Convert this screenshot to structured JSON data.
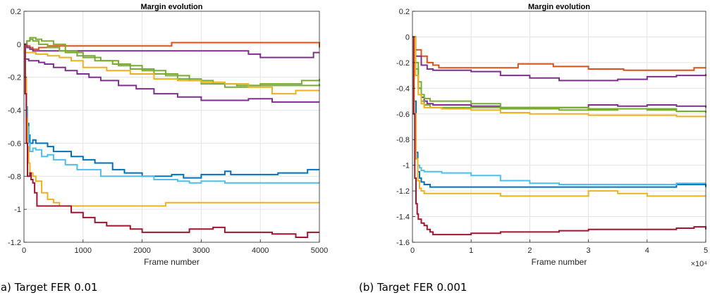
{
  "captions": [
    "(a) Target FER 0.01",
    "(b) Target FER 0.001"
  ],
  "chart_data": [
    {
      "type": "line",
      "title": "Margin evolution",
      "xlabel": "Frame number",
      "ylabel": "",
      "xlim": [
        0,
        5000
      ],
      "ylim": [
        -1.2,
        0.2
      ],
      "xticks": [
        0,
        1000,
        2000,
        3000,
        4000,
        5000
      ],
      "xtick_labels": [
        "0",
        "1000",
        "2000",
        "3000",
        "4000",
        "5000"
      ],
      "yticks": [
        0.2,
        0,
        -0.2,
        -0.4,
        -0.6,
        -0.8,
        -1,
        -1.2
      ],
      "ytick_labels": [
        "0.2",
        "0",
        "-0.2",
        "-0.4",
        "-0.6",
        "-0.8",
        "-1",
        "-1.2"
      ],
      "x_exponent_label": "",
      "grid": true,
      "series": [
        {
          "color": "#D95319",
          "x": [
            0,
            50,
            100,
            150,
            250,
            400,
            2400,
            2500,
            3600,
            3700,
            4900,
            5000
          ],
          "y": [
            0,
            -0.01,
            -0.02,
            -0.03,
            -0.02,
            -0.01,
            -0.01,
            0.01,
            0.01,
            0.01,
            0.01,
            -0.02
          ]
        },
        {
          "color": "#7E2F8E",
          "x": [
            0,
            50,
            100,
            150,
            200,
            300,
            500,
            3600,
            3800,
            4000,
            4500,
            4900,
            5000
          ],
          "y": [
            0,
            -0.02,
            -0.03,
            -0.04,
            -0.04,
            -0.04,
            -0.04,
            -0.04,
            -0.06,
            -0.08,
            -0.08,
            -0.05,
            -0.05
          ]
        },
        {
          "color": "#7E2F8E",
          "x": [
            0,
            40,
            80,
            120,
            200,
            250,
            350,
            500,
            700,
            900,
            1100,
            1300,
            1600,
            1900,
            2200,
            2600,
            3000,
            3400,
            3800,
            4200,
            4600,
            5000
          ],
          "y": [
            -0.09,
            -0.09,
            -0.1,
            -0.1,
            -0.1,
            -0.11,
            -0.12,
            -0.14,
            -0.16,
            -0.18,
            -0.2,
            -0.22,
            -0.25,
            -0.27,
            -0.3,
            -0.32,
            -0.34,
            -0.34,
            -0.33,
            -0.35,
            -0.35,
            -0.35
          ]
        },
        {
          "color": "#77AC30",
          "x": [
            0,
            50,
            100,
            150,
            200,
            300,
            500,
            700,
            1000,
            1300,
            1600,
            2000,
            2400,
            2800,
            3200,
            3600,
            4000,
            4400,
            4700,
            5000
          ],
          "y": [
            0,
            0.02,
            0.04,
            0.04,
            0.03,
            0.02,
            0.0,
            -0.05,
            -0.08,
            -0.1,
            -0.13,
            -0.16,
            -0.19,
            -0.22,
            -0.24,
            -0.25,
            -0.24,
            -0.24,
            -0.22,
            -0.21
          ]
        },
        {
          "color": "#77AC30",
          "x": [
            0,
            50,
            100,
            150,
            250,
            400,
            600,
            900,
            1200,
            1500,
            1800,
            2200,
            2600,
            3000,
            3400,
            3800,
            4200,
            4600,
            5000
          ],
          "y": [
            0,
            0.02,
            0.03,
            0.02,
            0.0,
            -0.02,
            -0.04,
            -0.07,
            -0.1,
            -0.12,
            -0.15,
            -0.18,
            -0.21,
            -0.24,
            -0.26,
            -0.25,
            -0.25,
            -0.25,
            -0.24
          ]
        },
        {
          "color": "#EDB120",
          "x": [
            0,
            200,
            400,
            600,
            800,
            1000,
            1400,
            1800,
            2200,
            2600,
            3000,
            3400,
            3800,
            4200,
            4600,
            5000
          ],
          "y": [
            -0.05,
            -0.06,
            -0.07,
            -0.08,
            -0.1,
            -0.14,
            -0.16,
            -0.18,
            -0.21,
            -0.22,
            -0.23,
            -0.24,
            -0.26,
            -0.3,
            -0.28,
            -0.28
          ]
        },
        {
          "color": "#0072BD",
          "x": [
            0,
            20,
            40,
            60,
            80,
            100,
            150,
            200,
            300,
            400,
            500,
            600,
            800,
            1000,
            1200,
            1400,
            1500,
            1700,
            2000,
            2500,
            2700,
            3000,
            3300,
            3400,
            3500,
            3800,
            4000,
            4300,
            4600,
            4800,
            5000
          ],
          "y": [
            0,
            -0.2,
            -0.38,
            -0.48,
            -0.55,
            -0.6,
            -0.58,
            -0.6,
            -0.6,
            -0.62,
            -0.65,
            -0.65,
            -0.68,
            -0.7,
            -0.72,
            -0.72,
            -0.76,
            -0.78,
            -0.8,
            -0.79,
            -0.81,
            -0.79,
            -0.79,
            -0.77,
            -0.79,
            -0.79,
            -0.79,
            -0.78,
            -0.78,
            -0.76,
            -0.76
          ]
        },
        {
          "color": "#4DBEEE",
          "x": [
            0,
            20,
            40,
            60,
            80,
            100,
            150,
            200,
            300,
            400,
            500,
            700,
            900,
            1300,
            1800,
            2200,
            2600,
            2800,
            3000,
            3400,
            3800,
            4200,
            4600,
            5000
          ],
          "y": [
            0,
            -0.2,
            -0.38,
            -0.5,
            -0.6,
            -0.65,
            -0.63,
            -0.64,
            -0.68,
            -0.67,
            -0.7,
            -0.73,
            -0.76,
            -0.8,
            -0.8,
            -0.82,
            -0.83,
            -0.84,
            -0.83,
            -0.84,
            -0.84,
            -0.84,
            -0.84,
            -0.84
          ]
        },
        {
          "color": "#EDB120",
          "x": [
            0,
            20,
            40,
            60,
            80,
            100,
            150,
            200,
            300,
            400,
            500,
            600,
            800,
            1000,
            1200,
            1500,
            1800,
            2100,
            2400,
            2700,
            3000,
            3300,
            3600,
            3900,
            4200,
            4500,
            4800,
            5000
          ],
          "y": [
            0,
            -0.2,
            -0.45,
            -0.62,
            -0.72,
            -0.78,
            -0.8,
            -0.83,
            -0.9,
            -0.94,
            -0.96,
            -0.98,
            -0.98,
            -0.98,
            -0.98,
            -0.98,
            -0.98,
            -0.98,
            -0.96,
            -0.96,
            -0.96,
            -0.96,
            -0.96,
            -0.96,
            -0.96,
            -0.96,
            -0.96,
            -0.96
          ]
        },
        {
          "color": "#A2142F",
          "x": [
            0,
            20,
            40,
            60,
            80,
            100,
            120,
            150,
            180,
            220,
            300,
            500,
            800,
            1000,
            1200,
            1400,
            1600,
            1800,
            2000,
            2200,
            2500,
            2800,
            3000,
            3200,
            3400,
            3600,
            3800,
            4200,
            4600,
            4800,
            5000
          ],
          "y": [
            0,
            -0.3,
            -0.6,
            -0.8,
            -0.8,
            -0.78,
            -0.82,
            -0.84,
            -0.9,
            -0.98,
            -0.98,
            -0.98,
            -1.02,
            -1.05,
            -1.08,
            -1.1,
            -1.1,
            -1.12,
            -1.14,
            -1.14,
            -1.14,
            -1.12,
            -1.12,
            -1.11,
            -1.14,
            -1.14,
            -1.14,
            -1.15,
            -1.17,
            -1.14,
            -1.14
          ]
        }
      ]
    },
    {
      "type": "line",
      "title": "Margin evolution",
      "xlabel": "Frame number",
      "ylabel": "",
      "xlim": [
        0,
        50000
      ],
      "ylim": [
        -1.6,
        0.2
      ],
      "xticks": [
        0,
        10000,
        20000,
        30000,
        40000,
        50000
      ],
      "xtick_labels": [
        "0",
        "1",
        "2",
        "3",
        "4",
        "5"
      ],
      "yticks": [
        0.2,
        0,
        -0.2,
        -0.4,
        -0.6,
        -0.8,
        -1,
        -1.2,
        -1.4,
        -1.6
      ],
      "ytick_labels": [
        "0.2",
        "0",
        "-0.2",
        "-0.4",
        "-0.6",
        "-0.8",
        "-1",
        "-1.2",
        "-1.4",
        "-1.6"
      ],
      "x_exponent_label": "×10⁴",
      "grid": true,
      "series": [
        {
          "color": "#D95319",
          "x": [
            0,
            500,
            1500,
            2500,
            3500,
            4500,
            6000,
            12000,
            15000,
            18000,
            24000,
            30000,
            36000,
            42000,
            48000,
            50000
          ],
          "y": [
            0,
            -0.1,
            -0.15,
            -0.2,
            -0.22,
            -0.24,
            -0.24,
            -0.24,
            -0.24,
            -0.21,
            -0.23,
            -0.25,
            -0.26,
            -0.26,
            -0.24,
            -0.24
          ]
        },
        {
          "color": "#7E2F8E",
          "x": [
            0,
            500,
            1500,
            2500,
            3500,
            5000,
            10000,
            15000,
            20000,
            25000,
            30000,
            35000,
            40000,
            45000,
            50000
          ],
          "y": [
            0,
            -0.15,
            -0.22,
            -0.25,
            -0.26,
            -0.26,
            -0.27,
            -0.3,
            -0.32,
            -0.34,
            -0.34,
            -0.33,
            -0.31,
            -0.3,
            -0.29
          ]
        },
        {
          "color": "#7E2F8E",
          "x": [
            0,
            500,
            1000,
            1500,
            2000,
            2500,
            3500,
            5000,
            10000,
            15000,
            20000,
            25000,
            30000,
            35000,
            40000,
            45000,
            50000
          ],
          "y": [
            0,
            -0.3,
            -0.4,
            -0.47,
            -0.5,
            -0.52,
            -0.53,
            -0.53,
            -0.54,
            -0.55,
            -0.55,
            -0.55,
            -0.53,
            -0.54,
            -0.53,
            -0.54,
            -0.55
          ]
        },
        {
          "color": "#77AC30",
          "x": [
            0,
            500,
            1000,
            1500,
            2000,
            3000,
            5000,
            10000,
            15000,
            20000,
            25000,
            30000,
            35000,
            40000,
            45000,
            50000
          ],
          "y": [
            0,
            -0.2,
            -0.35,
            -0.45,
            -0.48,
            -0.5,
            -0.5,
            -0.52,
            -0.55,
            -0.55,
            -0.55,
            -0.57,
            -0.56,
            -0.57,
            -0.58,
            -0.59
          ]
        },
        {
          "color": "#77AC30",
          "x": [
            0,
            500,
            1000,
            1500,
            2000,
            3000,
            5000,
            10000,
            15000,
            20000,
            25000,
            30000,
            35000,
            40000,
            45000,
            50000
          ],
          "y": [
            0,
            -0.25,
            -0.4,
            -0.5,
            -0.53,
            -0.55,
            -0.55,
            -0.55,
            -0.56,
            -0.56,
            -0.57,
            -0.56,
            -0.56,
            -0.56,
            -0.58,
            -0.59
          ]
        },
        {
          "color": "#EDB120",
          "x": [
            0,
            500,
            1000,
            1500,
            2000,
            3000,
            5000,
            10000,
            15000,
            20000,
            25000,
            30000,
            35000,
            40000,
            45000,
            50000
          ],
          "y": [
            0,
            -0.3,
            -0.45,
            -0.52,
            -0.55,
            -0.55,
            -0.56,
            -0.57,
            -0.59,
            -0.6,
            -0.6,
            -0.61,
            -0.61,
            -0.61,
            -0.62,
            -0.62
          ]
        },
        {
          "color": "#0072BD",
          "x": [
            0,
            300,
            600,
            900,
            1200,
            1500,
            2000,
            3000,
            5000,
            10000,
            20000,
            30000,
            40000,
            45000,
            50000
          ],
          "y": [
            0,
            -0.5,
            -0.9,
            -1.05,
            -1.1,
            -1.13,
            -1.15,
            -1.17,
            -1.17,
            -1.17,
            -1.17,
            -1.17,
            -1.17,
            -1.15,
            -1.17
          ]
        },
        {
          "color": "#4DBEEE",
          "x": [
            0,
            300,
            600,
            900,
            1200,
            1500,
            2000,
            3000,
            5000,
            10000,
            15000,
            20000,
            25000,
            30000,
            35000,
            40000,
            45000,
            50000
          ],
          "y": [
            0,
            -0.6,
            -0.95,
            -1.0,
            -1.02,
            -1.04,
            -1.05,
            -1.05,
            -1.06,
            -1.08,
            -1.12,
            -1.14,
            -1.15,
            -1.15,
            -1.15,
            -1.15,
            -1.14,
            -1.14
          ]
        },
        {
          "color": "#EDB120",
          "x": [
            0,
            300,
            600,
            900,
            1200,
            1500,
            2000,
            3000,
            5000,
            10000,
            15000,
            20000,
            25000,
            30000,
            35000,
            40000,
            45000,
            50000
          ],
          "y": [
            0,
            -0.6,
            -0.95,
            -1.12,
            -1.18,
            -1.2,
            -1.22,
            -1.22,
            -1.22,
            -1.22,
            -1.24,
            -1.24,
            -1.24,
            -1.2,
            -1.22,
            -1.24,
            -1.24,
            -1.24
          ]
        },
        {
          "color": "#A2142F",
          "x": [
            0,
            200,
            400,
            600,
            800,
            1000,
            1500,
            2000,
            2500,
            3000,
            3500,
            4000,
            5000,
            10000,
            15000,
            20000,
            25000,
            30000,
            35000,
            40000,
            45000,
            48000,
            50000
          ],
          "y": [
            0,
            -0.6,
            -1.1,
            -1.3,
            -1.38,
            -1.42,
            -1.45,
            -1.47,
            -1.5,
            -1.52,
            -1.54,
            -1.54,
            -1.54,
            -1.53,
            -1.52,
            -1.52,
            -1.51,
            -1.5,
            -1.5,
            -1.5,
            -1.49,
            -1.48,
            -1.5
          ]
        }
      ]
    }
  ]
}
